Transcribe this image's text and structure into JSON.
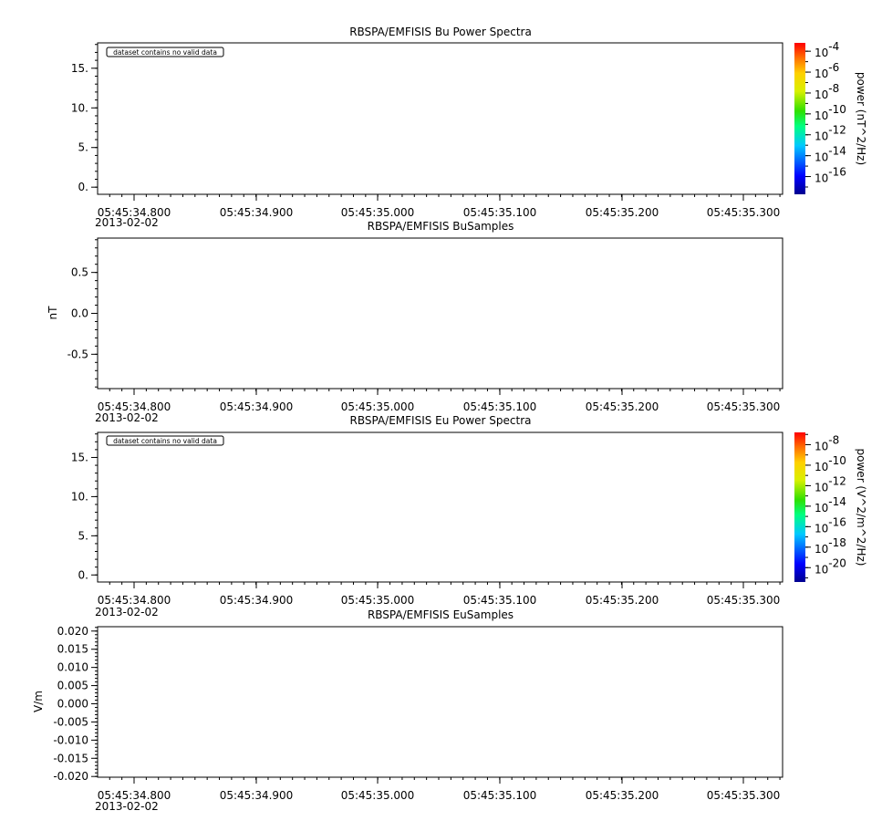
{
  "chart_data": [
    {
      "type": "heatmap",
      "title": "RBSPA/EMFISIS  Bu Power Spectra",
      "ylabel": "",
      "ylim": [
        -0.9,
        18.2
      ],
      "y_ticks": [
        "0.",
        "5.",
        "10.",
        "15."
      ],
      "y_tick_values": [
        0,
        5,
        10,
        15
      ],
      "x_ticks": [
        "05:45:34.800",
        "05:45:34.900",
        "05:45:35.000",
        "05:45:35.100",
        "05:45:35.200",
        "05:45:35.300"
      ],
      "x_date_label": "2013-02-02",
      "message": "dataset contains no valid data",
      "values": [],
      "colorbar": {
        "label": "power (nT^2/Hz)",
        "ticks": [
          {
            "base": "10",
            "exp": "-4",
            "value": -4
          },
          {
            "base": "10",
            "exp": "-6",
            "value": -6
          },
          {
            "base": "10",
            "exp": "-8",
            "value": -8
          },
          {
            "base": "10",
            "exp": "-10",
            "value": -10
          },
          {
            "base": "10",
            "exp": "-12",
            "value": -12
          },
          {
            "base": "10",
            "exp": "-14",
            "value": -14
          },
          {
            "base": "10",
            "exp": "-16",
            "value": -16
          }
        ],
        "range_log10": [
          -17.7,
          -3.2
        ],
        "scale": "log"
      }
    },
    {
      "type": "line",
      "title": "RBSPA/EMFISIS  BuSamples",
      "ylabel": "nT",
      "ylim": [
        -0.92,
        0.92
      ],
      "y_ticks": [
        "0.5",
        "0.0",
        "-0.5"
      ],
      "y_tick_values": [
        0.5,
        0.0,
        -0.5
      ],
      "x_ticks": [
        "05:45:34.800",
        "05:45:34.900",
        "05:45:35.000",
        "05:45:35.100",
        "05:45:35.200",
        "05:45:35.300"
      ],
      "x_date_label": "2013-02-02",
      "values": []
    },
    {
      "type": "heatmap",
      "title": "RBSPA/EMFISIS  Eu Power Spectra",
      "ylabel": "",
      "ylim": [
        -0.9,
        18.2
      ],
      "y_ticks": [
        "0.",
        "5.",
        "10.",
        "15."
      ],
      "y_tick_values": [
        0,
        5,
        10,
        15
      ],
      "x_ticks": [
        "05:45:34.800",
        "05:45:34.900",
        "05:45:35.000",
        "05:45:35.100",
        "05:45:35.200",
        "05:45:35.300"
      ],
      "x_date_label": "2013-02-02",
      "message": "dataset contains no valid data",
      "values": [],
      "colorbar": {
        "label": "power (V^2/m^2/Hz)",
        "ticks": [
          {
            "base": "10",
            "exp": "-8",
            "value": -8
          },
          {
            "base": "10",
            "exp": "-10",
            "value": -10
          },
          {
            "base": "10",
            "exp": "-12",
            "value": -12
          },
          {
            "base": "10",
            "exp": "-14",
            "value": -14
          },
          {
            "base": "10",
            "exp": "-16",
            "value": -16
          },
          {
            "base": "10",
            "exp": "-18",
            "value": -18
          },
          {
            "base": "10",
            "exp": "-20",
            "value": -20
          }
        ],
        "range_log10": [
          -21.4,
          -6.8
        ],
        "scale": "log"
      }
    },
    {
      "type": "line",
      "title": "RBSPA/EMFISIS  EuSamples",
      "ylabel": "V/m",
      "ylim": [
        -0.0202,
        0.0212
      ],
      "y_ticks": [
        "0.020",
        "0.015",
        "0.010",
        "0.005",
        "0.000",
        "-0.005",
        "-0.010",
        "-0.015",
        "-0.020"
      ],
      "y_tick_values": [
        0.02,
        0.015,
        0.01,
        0.005,
        0.0,
        -0.005,
        -0.01,
        -0.015,
        -0.02
      ],
      "x_ticks": [
        "05:45:34.800",
        "05:45:34.900",
        "05:45:35.000",
        "05:45:35.100",
        "05:45:35.200",
        "05:45:35.300"
      ],
      "x_date_label": "2013-02-02",
      "values": []
    }
  ]
}
